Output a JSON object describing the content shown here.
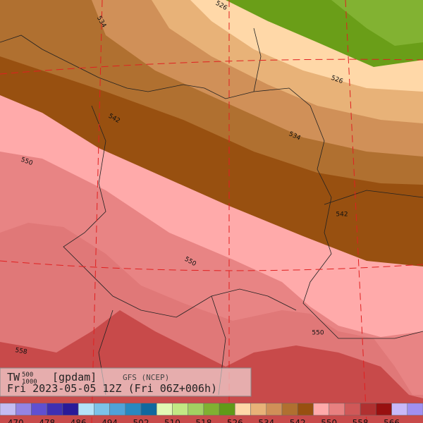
{
  "header": {
    "title": "TW",
    "superscript": "500",
    "subscript": "1000",
    "unit": "[gpdam]",
    "model": "GFS (NCEP)",
    "time": "Fri 2023-05-05 12Z (Fri 06Z+006h)"
  },
  "map": {
    "contour_labels": [
      "526",
      "526",
      "534",
      "534",
      "542",
      "542",
      "550",
      "550",
      "550",
      "558"
    ]
  },
  "colorbar": {
    "colors": [
      "#c4bcf2",
      "#9484e2",
      "#6050d0",
      "#3f2fb2",
      "#2a1a98",
      "#b4e2f8",
      "#7cc2e8",
      "#50a2d8",
      "#2888c0",
      "#10689e",
      "#e2f8b4",
      "#c2e884",
      "#a2d062",
      "#80b032",
      "#609a18",
      "#ffd8a8",
      "#e8b278",
      "#d09058",
      "#b07030",
      "#985010",
      "#ffaaaa",
      "#e88080",
      "#d05858",
      "#b03030",
      "#981010",
      "#c8b8f8",
      "#a090f0"
    ],
    "labels": [
      470,
      478,
      486,
      494,
      502,
      510,
      518,
      526,
      534,
      542,
      550,
      558,
      566
    ]
  }
}
